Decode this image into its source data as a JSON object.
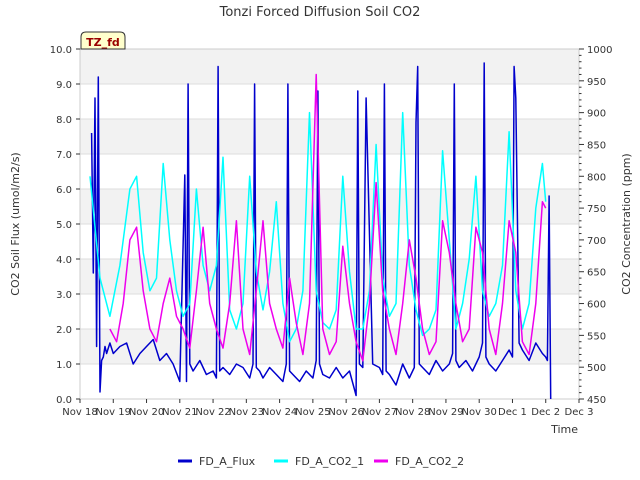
{
  "chart_data": {
    "type": "line",
    "title": "Tonzi Forced Diffusion Soil CO2",
    "badge": "TZ_fd",
    "xlabel": "Time",
    "ylabel_left": "CO2 Soil Flux (umol/m2/s)",
    "ylabel_right": "CO2 Concentration (ppm)",
    "x_ticks": [
      "Nov 18",
      "Nov 19",
      "Nov 20",
      "Nov 21",
      "Nov 22",
      "Nov 23",
      "Nov 24",
      "Nov 25",
      "Nov 26",
      "Nov 27",
      "Nov 28",
      "Nov 29",
      "Nov 30",
      "Dec 1",
      "Dec 2",
      "Dec 3"
    ],
    "xlim_days": [
      0,
      15
    ],
    "ylim_left": [
      0,
      10
    ],
    "ylim_right": [
      450,
      1000
    ],
    "y_ticks_left": [
      "0.0",
      "1.0",
      "2.0",
      "3.0",
      "4.0",
      "5.0",
      "6.0",
      "7.0",
      "8.0",
      "9.0",
      "10.0"
    ],
    "y_ticks_right": [
      "450",
      "500",
      "550",
      "600",
      "650",
      "700",
      "750",
      "800",
      "850",
      "900",
      "950",
      "1000"
    ],
    "grid_bands": true,
    "legend_position": "bottom",
    "series": [
      {
        "name": "FD_A_Flux",
        "axis": "left",
        "color": "#0000cc",
        "x": [
          0.35,
          0.4,
          0.45,
          0.5,
          0.55,
          0.6,
          0.65,
          0.7,
          0.75,
          0.8,
          0.9,
          1.0,
          1.2,
          1.4,
          1.6,
          1.8,
          2.0,
          2.2,
          2.4,
          2.6,
          2.8,
          3.0,
          3.15,
          3.2,
          3.25,
          3.3,
          3.4,
          3.6,
          3.8,
          4.0,
          4.1,
          4.15,
          4.2,
          4.3,
          4.5,
          4.7,
          4.9,
          5.1,
          5.2,
          5.25,
          5.3,
          5.4,
          5.5,
          5.7,
          5.9,
          6.1,
          6.2,
          6.25,
          6.3,
          6.4,
          6.6,
          6.8,
          7.0,
          7.1,
          7.15,
          7.2,
          7.3,
          7.5,
          7.7,
          7.9,
          8.1,
          8.3,
          8.35,
          8.4,
          8.5,
          8.6,
          8.8,
          9.0,
          9.1,
          9.15,
          9.2,
          9.3,
          9.5,
          9.7,
          9.9,
          10.05,
          10.1,
          10.15,
          10.2,
          10.3,
          10.5,
          10.7,
          10.9,
          11.1,
          11.2,
          11.25,
          11.3,
          11.4,
          11.6,
          11.8,
          12.0,
          12.1,
          12.15,
          12.2,
          12.3,
          12.5,
          12.7,
          12.9,
          13.0,
          13.05,
          13.1,
          13.2,
          13.3,
          13.5,
          13.7,
          13.9,
          14.0,
          14.05,
          14.1,
          14.15
        ],
        "y": [
          7.6,
          3.6,
          8.6,
          1.5,
          9.2,
          0.2,
          1.1,
          1.2,
          1.5,
          1.3,
          1.6,
          1.3,
          1.5,
          1.6,
          1.0,
          1.3,
          1.5,
          1.7,
          1.1,
          1.3,
          1.0,
          0.5,
          6.4,
          0.5,
          9.0,
          1.0,
          0.8,
          1.1,
          0.7,
          0.8,
          0.6,
          9.5,
          0.8,
          0.9,
          0.7,
          1.0,
          0.9,
          0.6,
          1.0,
          9.0,
          0.9,
          0.8,
          0.6,
          0.9,
          0.7,
          0.5,
          1.0,
          9.0,
          0.8,
          0.7,
          0.5,
          0.8,
          0.6,
          1.1,
          8.8,
          1.0,
          0.7,
          0.6,
          0.9,
          0.6,
          0.8,
          0.1,
          8.8,
          1.0,
          0.9,
          8.6,
          1.0,
          0.9,
          0.7,
          9.0,
          0.8,
          0.7,
          0.4,
          1.0,
          0.6,
          0.9,
          7.9,
          9.5,
          1.0,
          0.9,
          0.7,
          1.1,
          0.8,
          1.0,
          1.3,
          9.0,
          1.1,
          0.9,
          1.1,
          0.8,
          1.2,
          1.6,
          9.6,
          1.2,
          1.0,
          0.8,
          1.1,
          1.4,
          1.2,
          9.5,
          8.6,
          1.6,
          1.4,
          1.1,
          1.6,
          1.3,
          1.2,
          1.1,
          5.8,
          0.0
        ]
      },
      {
        "name": "FD_A_CO2_1",
        "axis": "right",
        "color": "#00ffff",
        "x": [
          0.3,
          0.6,
          0.9,
          1.2,
          1.5,
          1.7,
          1.9,
          2.1,
          2.3,
          2.5,
          2.7,
          2.9,
          3.1,
          3.3,
          3.5,
          3.7,
          3.9,
          4.1,
          4.3,
          4.5,
          4.7,
          4.9,
          5.1,
          5.3,
          5.5,
          5.7,
          5.9,
          6.1,
          6.3,
          6.5,
          6.7,
          6.9,
          7.1,
          7.3,
          7.5,
          7.7,
          7.9,
          8.1,
          8.3,
          8.5,
          8.7,
          8.9,
          9.1,
          9.3,
          9.5,
          9.7,
          9.9,
          10.1,
          10.3,
          10.5,
          10.7,
          10.9,
          11.1,
          11.3,
          11.5,
          11.7,
          11.9,
          12.1,
          12.3,
          12.5,
          12.7,
          12.9,
          13.1,
          13.3,
          13.5,
          13.7,
          13.9,
          14.0
        ],
        "y": [
          800,
          640,
          580,
          660,
          780,
          800,
          680,
          620,
          640,
          820,
          700,
          620,
          580,
          600,
          780,
          660,
          620,
          660,
          830,
          590,
          560,
          600,
          800,
          650,
          590,
          650,
          760,
          600,
          540,
          560,
          620,
          900,
          620,
          570,
          560,
          590,
          800,
          650,
          560,
          560,
          620,
          850,
          640,
          580,
          600,
          900,
          660,
          590,
          550,
          560,
          590,
          840,
          700,
          560,
          600,
          670,
          800,
          620,
          580,
          600,
          660,
          870,
          620,
          560,
          600,
          750,
          820,
          760
        ]
      },
      {
        "name": "FD_A_CO2_2",
        "axis": "right",
        "color": "#ee00ee",
        "x": [
          0.9,
          1.1,
          1.3,
          1.5,
          1.7,
          1.9,
          2.1,
          2.3,
          2.5,
          2.7,
          2.9,
          3.1,
          3.3,
          3.5,
          3.7,
          3.9,
          4.1,
          4.3,
          4.5,
          4.7,
          4.9,
          5.1,
          5.3,
          5.5,
          5.7,
          5.9,
          6.1,
          6.3,
          6.5,
          6.7,
          6.9,
          7.1,
          7.3,
          7.5,
          7.7,
          7.9,
          8.1,
          8.3,
          8.5,
          8.7,
          8.9,
          9.1,
          9.3,
          9.5,
          9.7,
          9.9,
          10.1,
          10.3,
          10.5,
          10.7,
          10.9,
          11.1,
          11.3,
          11.5,
          11.7,
          11.9,
          12.1,
          12.3,
          12.5,
          12.7,
          12.9,
          13.1,
          13.3,
          13.5,
          13.7,
          13.9,
          14.0
        ],
        "y": [
          560,
          540,
          600,
          700,
          720,
          620,
          560,
          540,
          600,
          640,
          580,
          560,
          530,
          620,
          720,
          600,
          560,
          530,
          600,
          730,
          560,
          520,
          620,
          730,
          600,
          560,
          530,
          640,
          570,
          520,
          600,
          960,
          560,
          520,
          540,
          690,
          600,
          540,
          510,
          600,
          790,
          620,
          560,
          520,
          600,
          700,
          640,
          560,
          520,
          540,
          730,
          680,
          600,
          540,
          560,
          720,
          680,
          560,
          520,
          600,
          730,
          680,
          540,
          520,
          600,
          760,
          750
        ]
      }
    ]
  }
}
